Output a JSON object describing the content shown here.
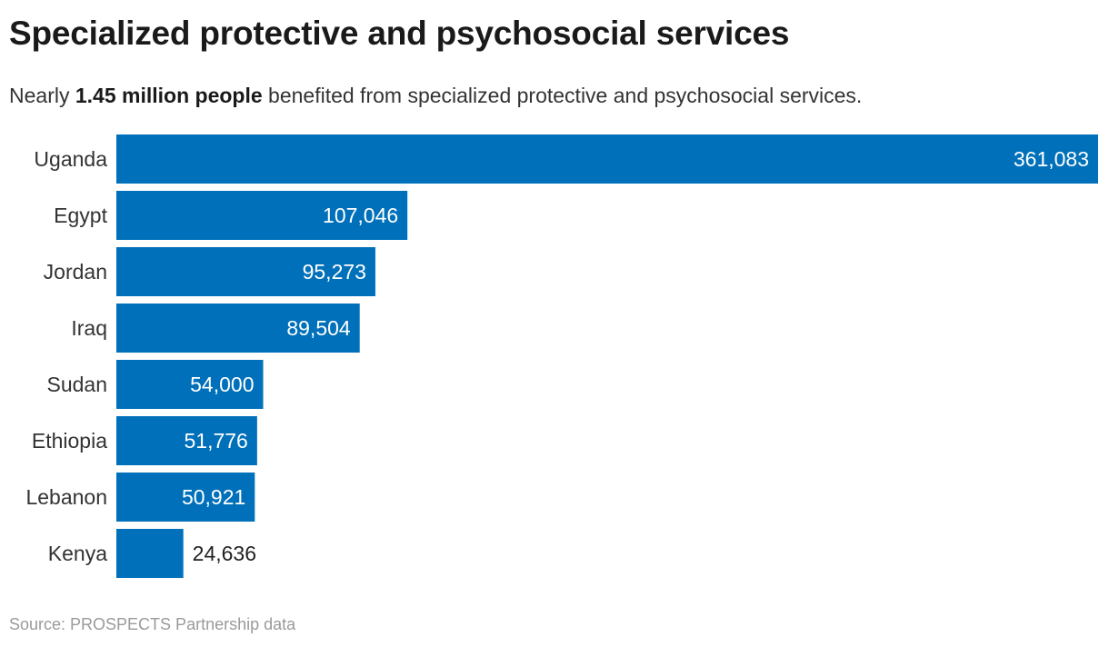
{
  "header": {
    "title": "Specialized protective and psychosocial services",
    "subtitle_prefix": "Nearly ",
    "subtitle_bold": "1.45 million people",
    "subtitle_suffix": " benefited from specialized protective and psychosocial services."
  },
  "footer": {
    "source": "Source: PROSPECTS Partnership data"
  },
  "colors": {
    "bar": "#0070ba",
    "label_inside": "#ffffff",
    "label_outside": "#222222",
    "category_text": "#333333"
  },
  "chart_data": {
    "type": "bar",
    "orientation": "horizontal",
    "categories": [
      "Uganda",
      "Egypt",
      "Jordan",
      "Iraq",
      "Sudan",
      "Ethiopia",
      "Lebanon",
      "Kenya"
    ],
    "values": [
      361083,
      107046,
      95273,
      89504,
      54000,
      51776,
      50921,
      24636
    ],
    "value_labels": [
      "361,083",
      "107,046",
      "95,273",
      "89,504",
      "54,000",
      "51,776",
      "50,921",
      "24,636"
    ],
    "xlim": [
      0,
      361083
    ],
    "grid": false,
    "legend": "none"
  }
}
